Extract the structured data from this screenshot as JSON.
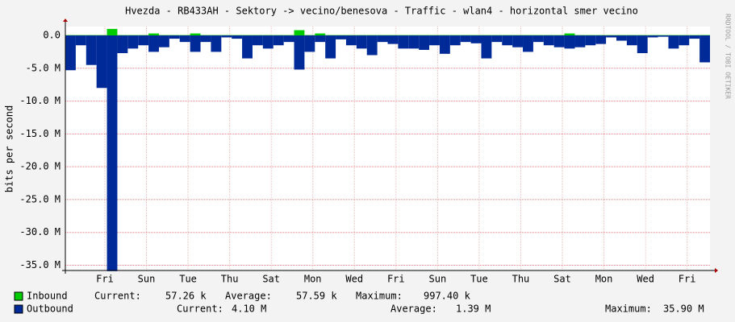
{
  "chart_data": {
    "type": "bar",
    "title": "Hvezda - RB433AH - Sektory -> vecino/benesova - Traffic - wlan4 - horizontal smer vecino",
    "y_label": "bits per second",
    "watermark": "RRDTOOL / TOBI OETIKER",
    "x": [
      0,
      0.5,
      1,
      1.5,
      2,
      2.5,
      3,
      3.5,
      4,
      4.5,
      5,
      5.5,
      6,
      6.5,
      7,
      7.5,
      8,
      8.5,
      9,
      9.5,
      10,
      10.5,
      11,
      11.5,
      12,
      12.5,
      13,
      13.5,
      14,
      14.5,
      15,
      15.5,
      16,
      16.5,
      17,
      17.5,
      18,
      18.5,
      19,
      19.5,
      20,
      20.5,
      21,
      21.5,
      22,
      22.5,
      23,
      23.5,
      24,
      24.5,
      25,
      25.5,
      26,
      26.5,
      27,
      27.5,
      28,
      28.5,
      29,
      29.5,
      30,
      30.5
    ],
    "xlim": [
      0,
      31
    ],
    "xticks": [
      {
        "value": 1.9,
        "label": "Fri"
      },
      {
        "value": 3.9,
        "label": "Sun"
      },
      {
        "value": 5.9,
        "label": "Tue"
      },
      {
        "value": 7.9,
        "label": "Thu"
      },
      {
        "value": 9.9,
        "label": "Sat"
      },
      {
        "value": 11.9,
        "label": "Mon"
      },
      {
        "value": 13.9,
        "label": "Wed"
      },
      {
        "value": 15.9,
        "label": "Fri"
      },
      {
        "value": 17.9,
        "label": "Sun"
      },
      {
        "value": 19.9,
        "label": "Tue"
      },
      {
        "value": 21.9,
        "label": "Thu"
      },
      {
        "value": 23.9,
        "label": "Sat"
      },
      {
        "value": 25.9,
        "label": "Mon"
      },
      {
        "value": 27.9,
        "label": "Wed"
      },
      {
        "value": 29.9,
        "label": "Fri"
      }
    ],
    "ylim": [
      -35800000,
      1350000
    ],
    "yticks": [
      {
        "value": 0,
        "label": "0.0"
      },
      {
        "value": -5000000,
        "label": "-5.0 M"
      },
      {
        "value": -10000000,
        "label": "-10.0 M"
      },
      {
        "value": -15000000,
        "label": "-15.0 M"
      },
      {
        "value": -20000000,
        "label": "-20.0 M"
      },
      {
        "value": -25000000,
        "label": "-25.0 M"
      },
      {
        "value": -30000000,
        "label": "-30.0 M"
      },
      {
        "value": -35000000,
        "label": "-35.0 M"
      }
    ],
    "grid": true,
    "series": [
      {
        "name": "Inbound",
        "color": "#00cc00",
        "values": [
          50000,
          50000,
          50000,
          50000,
          997400,
          50000,
          50000,
          50000,
          300000,
          50000,
          50000,
          50000,
          300000,
          50000,
          50000,
          50000,
          50000,
          50000,
          50000,
          50000,
          50000,
          50000,
          800000,
          50000,
          300000,
          50000,
          50000,
          50000,
          50000,
          50000,
          50000,
          50000,
          50000,
          50000,
          50000,
          50000,
          50000,
          50000,
          50000,
          50000,
          50000,
          50000,
          50000,
          50000,
          50000,
          50000,
          50000,
          50000,
          300000,
          50000,
          50000,
          50000,
          50000,
          50000,
          50000,
          50000,
          50000,
          50000,
          50000,
          50000,
          50000,
          57260
        ],
        "stats": [
          "Current:",
          "57.26 k",
          "Average:",
          "57.59 k",
          "Maximum:",
          "997.40 k"
        ]
      },
      {
        "name": "Outbound",
        "color": "#002a97",
        "values": [
          -5300000,
          -1500000,
          -4500000,
          -8000000,
          -35900000,
          -2700000,
          -2000000,
          -1500000,
          -2500000,
          -1800000,
          -500000,
          -1000000,
          -2500000,
          -1000000,
          -2500000,
          -300000,
          -500000,
          -3500000,
          -1500000,
          -2000000,
          -1500000,
          -1000000,
          -5200000,
          -2500000,
          -1000000,
          -3500000,
          -600000,
          -1500000,
          -2000000,
          -3000000,
          -1000000,
          -1300000,
          -2000000,
          -2000000,
          -2200000,
          -1500000,
          -2800000,
          -1500000,
          -1000000,
          -1200000,
          -3500000,
          -1000000,
          -1500000,
          -1800000,
          -2500000,
          -1000000,
          -1500000,
          -1800000,
          -2000000,
          -1800000,
          -1500000,
          -1300000,
          -300000,
          -800000,
          -1500000,
          -2700000,
          -300000,
          -200000,
          -2000000,
          -1500000,
          -500000,
          -4100000
        ],
        "stats": [
          "Current:",
          "4.10 M",
          "Average:",
          "1.39 M",
          "Maximum:",
          "35.90 M"
        ]
      }
    ]
  }
}
